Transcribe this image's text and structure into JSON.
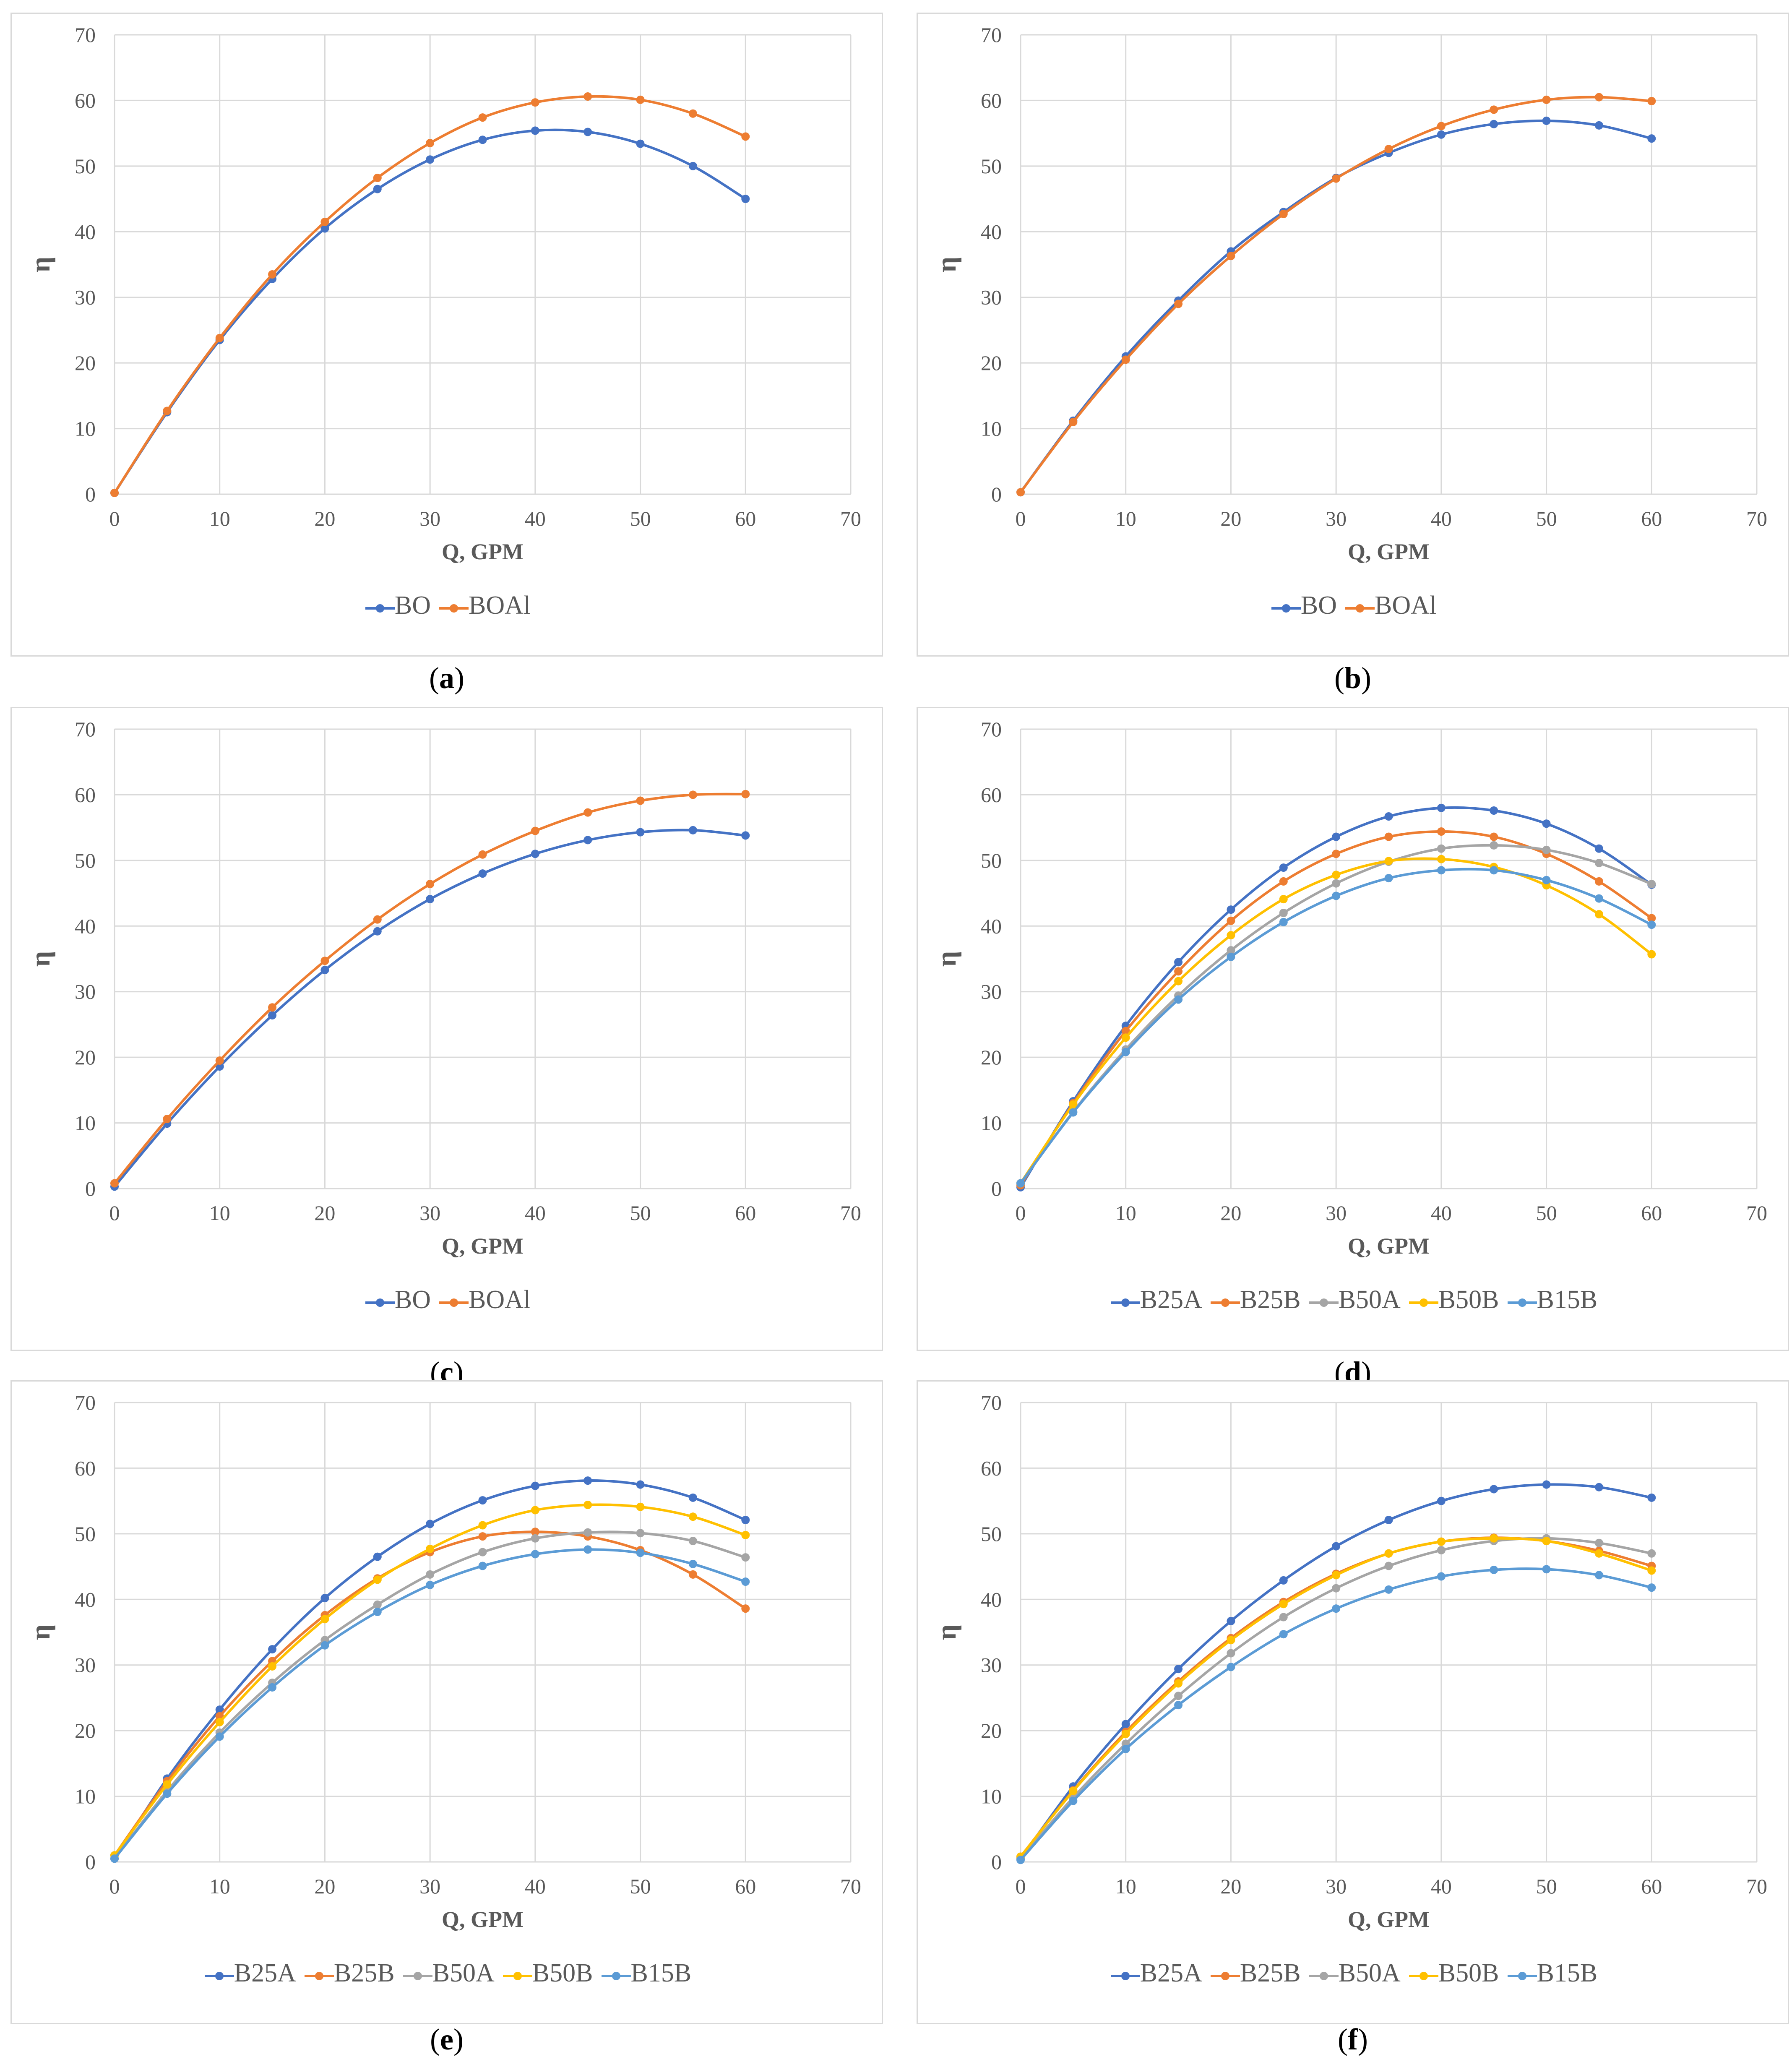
{
  "chart_data": [
    {
      "type": "line",
      "panel_label": "a",
      "xlabel": "Q, GPM",
      "ylabel": "η",
      "xlim": [
        0,
        70
      ],
      "ylim": [
        0,
        70
      ],
      "xticks": [
        0,
        10,
        20,
        30,
        40,
        50,
        60,
        70
      ],
      "yticks": [
        0,
        10,
        20,
        30,
        40,
        50,
        60,
        70
      ],
      "grid": true,
      "legend": "bottom",
      "x": [
        0,
        5,
        10,
        15,
        20,
        25,
        30,
        35,
        40,
        45,
        50,
        55,
        60
      ],
      "series": [
        {
          "name": "BO",
          "color": "#4472C4",
          "values": [
            0.2,
            12.5,
            23.5,
            32.8,
            40.5,
            46.5,
            51.0,
            54.0,
            55.4,
            55.2,
            53.4,
            50.0,
            45.0
          ]
        },
        {
          "name": "BOAl",
          "color": "#ED7D31",
          "values": [
            0.2,
            12.7,
            23.8,
            33.5,
            41.5,
            48.2,
            53.5,
            57.4,
            59.7,
            60.6,
            60.1,
            58.0,
            54.5
          ]
        }
      ]
    },
    {
      "type": "line",
      "panel_label": "b",
      "xlabel": "Q, GPM",
      "ylabel": "η",
      "xlim": [
        0,
        70
      ],
      "ylim": [
        0,
        70
      ],
      "xticks": [
        0,
        10,
        20,
        30,
        40,
        50,
        60,
        70
      ],
      "yticks": [
        0,
        10,
        20,
        30,
        40,
        50,
        60,
        70
      ],
      "grid": true,
      "legend": "bottom",
      "x": [
        0,
        5,
        10,
        15,
        20,
        25,
        30,
        35,
        40,
        45,
        50,
        55,
        60
      ],
      "series": [
        {
          "name": "BO",
          "color": "#4472C4",
          "values": [
            0.3,
            11.2,
            21.0,
            29.5,
            37.0,
            43.0,
            48.2,
            52.0,
            54.8,
            56.4,
            56.9,
            56.2,
            54.2
          ]
        },
        {
          "name": "BOAl",
          "color": "#ED7D31",
          "values": [
            0.3,
            11.0,
            20.5,
            29.0,
            36.3,
            42.7,
            48.1,
            52.6,
            56.1,
            58.6,
            60.1,
            60.5,
            59.9
          ]
        }
      ]
    },
    {
      "type": "line",
      "panel_label": "c",
      "xlabel": "Q, GPM",
      "ylabel": "η",
      "xlim": [
        0,
        70
      ],
      "ylim": [
        0,
        70
      ],
      "xticks": [
        0,
        10,
        20,
        30,
        40,
        50,
        60,
        70
      ],
      "yticks": [
        0,
        10,
        20,
        30,
        40,
        50,
        60,
        70
      ],
      "grid": true,
      "legend": "bottom",
      "x": [
        0,
        5,
        10,
        15,
        20,
        25,
        30,
        35,
        40,
        45,
        50,
        55,
        60
      ],
      "series": [
        {
          "name": "BO",
          "color": "#4472C4",
          "values": [
            0.3,
            9.9,
            18.6,
            26.4,
            33.3,
            39.2,
            44.1,
            48.0,
            51.0,
            53.1,
            54.3,
            54.6,
            53.8
          ]
        },
        {
          "name": "BOAl",
          "color": "#ED7D31",
          "values": [
            0.8,
            10.6,
            19.5,
            27.6,
            34.7,
            41.0,
            46.4,
            50.9,
            54.5,
            57.3,
            59.1,
            60.0,
            60.1
          ]
        }
      ]
    },
    {
      "type": "line",
      "panel_label": "d",
      "xlabel": "Q, GPM",
      "ylabel": "η",
      "xlim": [
        0,
        70
      ],
      "ylim": [
        0,
        70
      ],
      "xticks": [
        0,
        10,
        20,
        30,
        40,
        50,
        60,
        70
      ],
      "yticks": [
        0,
        10,
        20,
        30,
        40,
        50,
        60,
        70
      ],
      "grid": true,
      "legend": "bottom",
      "x": [
        0,
        5,
        10,
        15,
        20,
        25,
        30,
        35,
        40,
        45,
        50,
        55,
        60
      ],
      "series": [
        {
          "name": "B25A",
          "color": "#4472C4",
          "values": [
            0.2,
            13.3,
            24.8,
            34.5,
            42.5,
            48.9,
            53.6,
            56.7,
            58.0,
            57.6,
            55.6,
            51.8,
            46.3
          ]
        },
        {
          "name": "B25B",
          "color": "#ED7D31",
          "values": [
            0.5,
            13.0,
            24.0,
            33.1,
            40.8,
            46.8,
            51.0,
            53.6,
            54.4,
            53.6,
            51.0,
            46.8,
            41.2
          ]
        },
        {
          "name": "B50A",
          "color": "#A5A5A5",
          "values": [
            0.8,
            11.7,
            21.2,
            29.4,
            36.3,
            42.0,
            46.5,
            49.8,
            51.8,
            52.3,
            51.6,
            49.6,
            46.4
          ]
        },
        {
          "name": "B50B",
          "color": "#FFC000",
          "values": [
            0.8,
            12.8,
            23.0,
            31.6,
            38.6,
            44.1,
            47.8,
            49.9,
            50.2,
            49.0,
            46.2,
            41.8,
            35.7
          ]
        },
        {
          "name": "B15B",
          "color": "#5B9BD5",
          "values": [
            0.8,
            11.6,
            20.8,
            28.8,
            35.3,
            40.6,
            44.6,
            47.3,
            48.5,
            48.5,
            47.0,
            44.2,
            40.2
          ]
        }
      ]
    },
    {
      "type": "line",
      "panel_label": "e",
      "xlabel": "Q, GPM",
      "ylabel": "η",
      "xlim": [
        0,
        70
      ],
      "ylim": [
        0,
        70
      ],
      "xticks": [
        0,
        10,
        20,
        30,
        40,
        50,
        60,
        70
      ],
      "yticks": [
        0,
        10,
        20,
        30,
        40,
        50,
        60,
        70
      ],
      "grid": true,
      "legend": "bottom",
      "x": [
        0,
        5,
        10,
        15,
        20,
        25,
        30,
        35,
        40,
        45,
        50,
        55,
        60
      ],
      "series": [
        {
          "name": "B25A",
          "color": "#4472C4",
          "values": [
            0.5,
            12.7,
            23.2,
            32.4,
            40.2,
            46.5,
            51.5,
            55.1,
            57.3,
            58.1,
            57.5,
            55.5,
            52.1
          ]
        },
        {
          "name": "B25B",
          "color": "#ED7D31",
          "values": [
            1.0,
            12.3,
            22.2,
            30.6,
            37.6,
            43.2,
            47.2,
            49.6,
            50.3,
            49.6,
            47.5,
            43.8,
            38.6
          ]
        },
        {
          "name": "B50A",
          "color": "#A5A5A5",
          "values": [
            0.5,
            10.8,
            19.7,
            27.3,
            33.8,
            39.2,
            43.8,
            47.2,
            49.3,
            50.2,
            50.1,
            48.9,
            46.4
          ]
        },
        {
          "name": "B50B",
          "color": "#FFC000",
          "values": [
            1.0,
            11.8,
            21.3,
            29.8,
            37.0,
            43.0,
            47.7,
            51.3,
            53.6,
            54.4,
            54.1,
            52.6,
            49.8
          ]
        },
        {
          "name": "B15B",
          "color": "#5B9BD5",
          "values": [
            0.5,
            10.4,
            19.1,
            26.6,
            33.0,
            38.1,
            42.2,
            45.1,
            46.9,
            47.6,
            47.1,
            45.4,
            42.7
          ]
        }
      ]
    },
    {
      "type": "line",
      "panel_label": "f",
      "xlabel": "Q, GPM",
      "ylabel": "η",
      "xlim": [
        0,
        70
      ],
      "ylim": [
        0,
        70
      ],
      "xticks": [
        0,
        10,
        20,
        30,
        40,
        50,
        60,
        70
      ],
      "yticks": [
        0,
        10,
        20,
        30,
        40,
        50,
        60,
        70
      ],
      "grid": true,
      "legend": "bottom",
      "x": [
        0,
        5,
        10,
        15,
        20,
        25,
        30,
        35,
        40,
        45,
        50,
        55,
        60
      ],
      "series": [
        {
          "name": "B25A",
          "color": "#4472C4",
          "values": [
            0.5,
            11.5,
            21.0,
            29.4,
            36.7,
            42.9,
            48.1,
            52.1,
            55.0,
            56.8,
            57.5,
            57.1,
            55.5
          ]
        },
        {
          "name": "B25B",
          "color": "#ED7D31",
          "values": [
            0.8,
            10.9,
            19.8,
            27.5,
            34.1,
            39.6,
            43.9,
            47.0,
            48.8,
            49.4,
            48.9,
            47.4,
            45.1
          ]
        },
        {
          "name": "B50A",
          "color": "#A5A5A5",
          "values": [
            0.5,
            9.8,
            18.0,
            25.3,
            31.8,
            37.3,
            41.7,
            45.1,
            47.5,
            48.9,
            49.3,
            48.6,
            47.0
          ]
        },
        {
          "name": "B50B",
          "color": "#FFC000",
          "values": [
            0.8,
            10.8,
            19.5,
            27.2,
            33.8,
            39.3,
            43.7,
            47.0,
            48.8,
            49.3,
            48.9,
            47.0,
            44.4
          ]
        },
        {
          "name": "B15B",
          "color": "#5B9BD5",
          "values": [
            0.3,
            9.3,
            17.2,
            23.9,
            29.7,
            34.7,
            38.6,
            41.5,
            43.5,
            44.5,
            44.6,
            43.7,
            41.8
          ]
        }
      ]
    }
  ]
}
